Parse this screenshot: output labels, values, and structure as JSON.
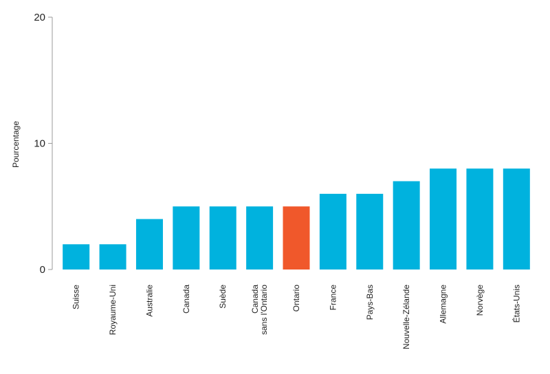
{
  "chart_data": {
    "type": "bar",
    "title": "",
    "xlabel": "",
    "ylabel": "Pourcentage",
    "ylim": [
      0,
      20
    ],
    "yticks": [
      "0",
      "10",
      "20"
    ],
    "grid": false,
    "categories": [
      [
        "Suisse"
      ],
      [
        "Royaume-Uni"
      ],
      [
        "Australie"
      ],
      [
        "Canada"
      ],
      [
        "Suède"
      ],
      [
        "Canada",
        "sans l'Ontario"
      ],
      [
        "Ontario"
      ],
      [
        "France"
      ],
      [
        "Pays-Bas"
      ],
      [
        "Nouvelle-Zélande"
      ],
      [
        "Allemagne"
      ],
      [
        "Norvège"
      ],
      [
        "États-Unis"
      ]
    ],
    "values": [
      2,
      2,
      4,
      5,
      5,
      5,
      5,
      6,
      6,
      7,
      8,
      8,
      8
    ],
    "colors": {
      "bar": "#00b2de",
      "highlight": "#f0582b",
      "axis": "#999999"
    },
    "highlight_category": "Ontario"
  }
}
